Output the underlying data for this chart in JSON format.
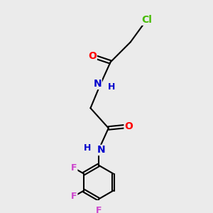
{
  "bg_color": "#ebebeb",
  "atom_colors": {
    "C": "#000000",
    "O": "#ff0000",
    "N": "#0000cc",
    "F": "#cc44cc",
    "Cl": "#44bb00",
    "H": "#000000"
  },
  "bond_color": "#000000",
  "bond_width": 1.5,
  "font_size": 10,
  "fig_width": 3.0,
  "fig_height": 3.0,
  "dpi": 100
}
